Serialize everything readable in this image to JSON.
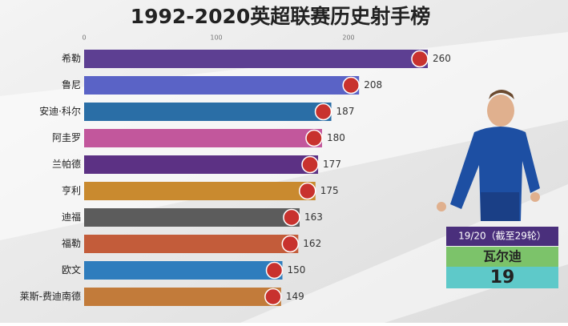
{
  "chart_data": {
    "type": "hbar",
    "title": "1992-2020英超联赛历史射手榜",
    "categories": [
      "希勒",
      "鲁尼",
      "安迪·科尔",
      "阿圭罗",
      "兰帕德",
      "亨利",
      "迪福",
      "福勒",
      "欧文",
      "莱斯-费迪南德"
    ],
    "values": [
      260,
      208,
      187,
      180,
      177,
      175,
      163,
      162,
      150,
      149
    ],
    "colors": [
      "#5d3f92",
      "#5a63c6",
      "#2a6ea6",
      "#c2579c",
      "#5c3184",
      "#c98a2f",
      "#5c5c5c",
      "#c35c3a",
      "#2f7dbd",
      "#c27b3a"
    ],
    "xlim": [
      0,
      300
    ],
    "xticks": [
      0,
      100,
      200
    ],
    "panel": {
      "season": "19/20（截至29轮）",
      "player": "瓦尔迪",
      "goals": "19"
    }
  }
}
